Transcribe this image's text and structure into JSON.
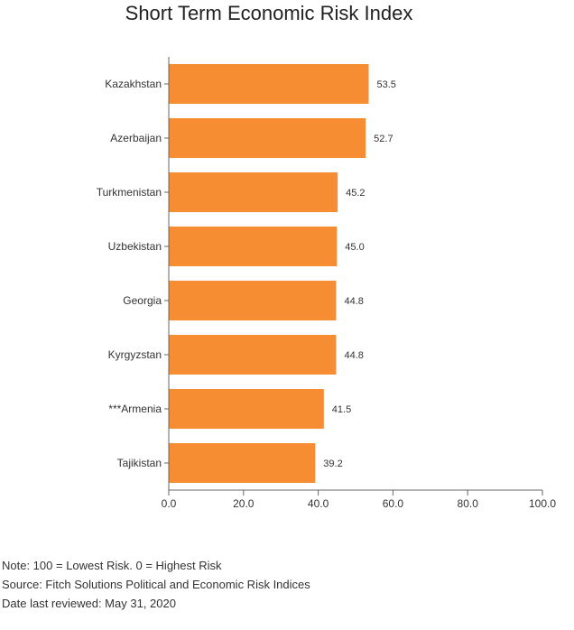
{
  "chart_data": {
    "type": "bar",
    "orientation": "horizontal",
    "title": "Short Term Economic Risk Index",
    "categories": [
      "Kazakhstan",
      "Azerbaijan",
      "Turkmenistan",
      "Uzbekistan",
      "Georgia",
      "Kyrgyzstan",
      "***Armenia",
      "Tajikistan"
    ],
    "values": [
      53.5,
      52.7,
      45.2,
      45.0,
      44.8,
      44.8,
      41.5,
      39.2
    ],
    "data_labels": [
      "53.5",
      "52.7",
      "45.2",
      "45.0",
      "44.8",
      "44.8",
      "41.5",
      "39.2"
    ],
    "xlim": [
      0,
      100
    ],
    "x_ticks": [
      "0.0",
      "20.0",
      "40.0",
      "60.0",
      "80.0",
      "100.0"
    ],
    "x_tick_values": [
      0,
      20,
      40,
      60,
      80,
      100
    ],
    "xlabel": "",
    "ylabel": "",
    "bar_color": "#F68D32",
    "grid": false,
    "legend": "none"
  },
  "notes": {
    "note": "Note: 100 = Lowest Risk. 0 = Highest Risk",
    "source": "Source: Fitch Solutions Political and Economic Risk Indices",
    "reviewed": "Date last reviewed: May 31, 2020"
  }
}
